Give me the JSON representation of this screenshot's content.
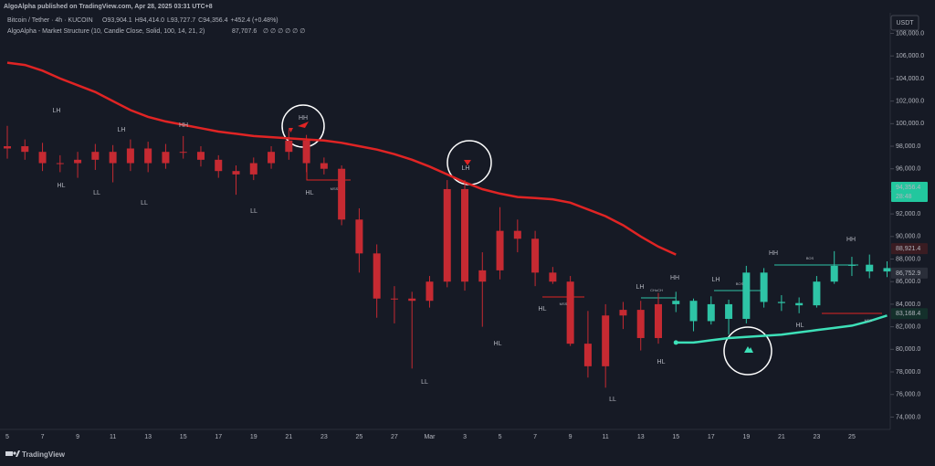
{
  "header": {
    "publisher": "AlgoAlpha published on TradingView.com, Apr 28, 2025 03:31 UTC+8",
    "symbol": "Bitcoin / Tether · 4h · KUCOIN",
    "ohlc": [
      "O93,904.1",
      "H94,414.0",
      "L93,727.7",
      "C94,356.4",
      "+452.4 (+0.48%)"
    ],
    "indicator": "AlgoAlpha - Market Structure (10, Candle Close, Solid, 100, 14, 21, 2)",
    "indicator_value": "87,707.6",
    "indicator_flags": "∅ ∅ ∅ ∅ ∅ ∅",
    "currency": "USDT",
    "countdown": "28:48",
    "brand": "TradingView"
  },
  "chart_data": {
    "type": "candlestick",
    "categories": [
      "5",
      null,
      "7",
      null,
      "9",
      null,
      "11",
      null,
      "13",
      null,
      "15",
      null,
      "17",
      null,
      "19",
      null,
      "21",
      null,
      "23",
      null,
      "25",
      null,
      "27",
      null,
      "Mar",
      null,
      "3",
      null,
      "5",
      null,
      "7",
      null,
      "9",
      null,
      "11",
      null,
      "13",
      null,
      "15",
      null,
      "17",
      null,
      "19",
      null,
      "21",
      null,
      "23",
      null,
      "25",
      null,
      null
    ],
    "open": [
      97800,
      98000,
      97500,
      96500,
      96500,
      96800,
      97500,
      96500,
      97800,
      96500,
      97500,
      97500,
      96800,
      95800,
      95500,
      96500,
      97500,
      98500,
      96500,
      96000,
      91500,
      88500,
      84500,
      84500,
      84300,
      86000,
      94200,
      86000,
      87000,
      90500,
      89800,
      86800,
      86000,
      80500,
      78500,
      83000,
      83500,
      81000,
      84000,
      84300,
      82500,
      84000,
      82700,
      86800,
      84200,
      84100,
      83900,
      86000,
      87400,
      87500,
      86900
    ],
    "high": [
      99800,
      98600,
      98300,
      97200,
      97500,
      98200,
      98100,
      98600,
      98400,
      98200,
      98900,
      98000,
      97200,
      96300,
      97000,
      98000,
      99500,
      99000,
      97000,
      96300,
      92500,
      89300,
      85600,
      85100,
      86500,
      95000,
      95000,
      88600,
      92600,
      91500,
      90500,
      87300,
      86500,
      83400,
      84000,
      84200,
      84300,
      85000,
      85100,
      84500,
      84700,
      84400,
      87400,
      87200,
      84800,
      84600,
      86500,
      88700,
      88200,
      88400,
      87800
    ],
    "low": [
      96900,
      96800,
      95800,
      95700,
      95200,
      95900,
      94800,
      95800,
      95700,
      96000,
      96900,
      96200,
      95200,
      93700,
      95000,
      96000,
      96800,
      95700,
      95500,
      91000,
      86800,
      82800,
      82300,
      78300,
      83700,
      85500,
      85200,
      82000,
      86200,
      88600,
      85600,
      85800,
      80300,
      77500,
      76600,
      81800,
      79900,
      80500,
      83300,
      81600,
      82200,
      81300,
      82300,
      83700,
      83400,
      83200,
      83700,
      85800,
      86500,
      86300,
      86400
    ],
    "close": [
      98000,
      97500,
      96500,
      96500,
      96800,
      97500,
      96500,
      97800,
      96500,
      97500,
      97500,
      96800,
      95800,
      95500,
      96500,
      97500,
      98500,
      96500,
      96000,
      91500,
      88500,
      84500,
      84500,
      84300,
      86000,
      94200,
      86000,
      87000,
      90500,
      89800,
      86800,
      86000,
      80500,
      78500,
      83000,
      83500,
      81000,
      84000,
      84300,
      82500,
      84000,
      82700,
      86800,
      84200,
      84100,
      83900,
      86000,
      87400,
      87500,
      86900,
      87200
    ],
    "candle_colors": [
      "#c62a32",
      "#c62a32",
      "#c62a32",
      "#c62a32",
      "#c62a32",
      "#c62a32",
      "#c62a32",
      "#c62a32",
      "#c62a32",
      "#c62a32",
      "#c62a32",
      "#c62a32",
      "#c62a32",
      "#c62a32",
      "#c62a32",
      "#c62a32",
      "#c62a32",
      "#c62a32",
      "#c62a32",
      "#c62a32",
      "#c62a32",
      "#c62a32",
      "#c62a32",
      "#c62a32",
      "#c62a32",
      "#c62a32",
      "#c62a32",
      "#c62a32",
      "#c62a32",
      "#c62a32",
      "#c62a32",
      "#c62a32",
      "#c62a32",
      "#c62a32",
      "#c62a32",
      "#c62a32",
      "#c62a32",
      "#c62a32",
      "#2ec4a6",
      "#2ec4a6",
      "#2ec4a6",
      "#2ec4a6",
      "#2ec4a6",
      "#2ec4a6",
      "#2ec4a6",
      "#2ec4a6",
      "#2ec4a6",
      "#2ec4a6",
      "#2ec4a6",
      "#2ec4a6",
      "#2ec4a6"
    ],
    "trailing_bearish": {
      "color": "#e02424",
      "values": [
        105400,
        105200,
        104700,
        104000,
        103400,
        102800,
        102000,
        101200,
        100600,
        100200,
        99900,
        99600,
        99300,
        99100,
        98900,
        98800,
        98700,
        98600,
        98500,
        98300,
        98000,
        97700,
        97300,
        96800,
        96200,
        95500,
        94800,
        94200,
        93800,
        93500,
        93400,
        93300,
        93000,
        92400,
        91800,
        91000,
        90000,
        89100,
        88400,
        null,
        null,
        null,
        null,
        null,
        null,
        null,
        null,
        null,
        null,
        null,
        null
      ]
    },
    "trailing_bullish": {
      "color": "#3de0b8",
      "values": [
        null,
        null,
        null,
        null,
        null,
        null,
        null,
        null,
        null,
        null,
        null,
        null,
        null,
        null,
        null,
        null,
        null,
        null,
        null,
        null,
        null,
        null,
        null,
        null,
        null,
        null,
        null,
        null,
        null,
        null,
        null,
        null,
        null,
        null,
        null,
        null,
        null,
        null,
        80600,
        80600,
        80800,
        81000,
        81100,
        81200,
        81300,
        81500,
        81700,
        81900,
        82100,
        82500,
        83000
      ]
    },
    "annotations": [
      "LH",
      "HL",
      "LL",
      "LH",
      "LL",
      "HH",
      "LL",
      "HH",
      "HL",
      "MSS",
      "LL",
      "LH",
      "HL",
      "HL",
      "MSS",
      "LL",
      "LH",
      "CHoCH",
      "HH",
      "HL",
      "LH",
      "BOS",
      "HH",
      "BOS",
      "HL",
      "HH",
      "MSS"
    ],
    "ylim": [
      72900,
      109500
    ],
    "yticks": [
      {
        "value": 74000,
        "label": "74,000.0"
      },
      {
        "value": 76000,
        "label": "76,000.0"
      },
      {
        "value": 78000,
        "label": "78,000.0"
      },
      {
        "value": 80000,
        "label": "80,000.0"
      },
      {
        "value": 82000,
        "label": "82,000.0"
      },
      {
        "value": 84000,
        "label": "84,000.0"
      },
      {
        "value": 86000,
        "label": "86,000.0"
      },
      {
        "value": 88000,
        "label": "88,000.0"
      },
      {
        "value": 90000,
        "label": "90,000.0"
      },
      {
        "value": 92000,
        "label": "92,000.0"
      },
      {
        "value": 94000,
        "label": "94,000.0"
      },
      {
        "value": 96000,
        "label": "96,000.0"
      },
      {
        "value": 98000,
        "label": "98,000.0"
      },
      {
        "value": 100000,
        "label": "100,000.0"
      },
      {
        "value": 102000,
        "label": "102,000.0"
      },
      {
        "value": 104000,
        "label": "104,000.0"
      },
      {
        "value": 106000,
        "label": "106,000.0"
      },
      {
        "value": 108000,
        "label": "108,000.0"
      }
    ],
    "price_tags": [
      {
        "value": 94356.4,
        "label": "94,356.4",
        "color": "#22c79e",
        "text_color": "#0d1117"
      },
      {
        "value": 88921.4,
        "label": "88,921.4",
        "color": "#3a1c22",
        "text_color": "#f0505a"
      },
      {
        "value": 86752.9,
        "label": "86,752.9",
        "color": "#2a2e39",
        "text_color": "#ffffff"
      },
      {
        "value": 83168.4,
        "label": "83,168.4",
        "color": "#14302b",
        "text_color": "#ffffff"
      }
    ],
    "grid": false
  }
}
